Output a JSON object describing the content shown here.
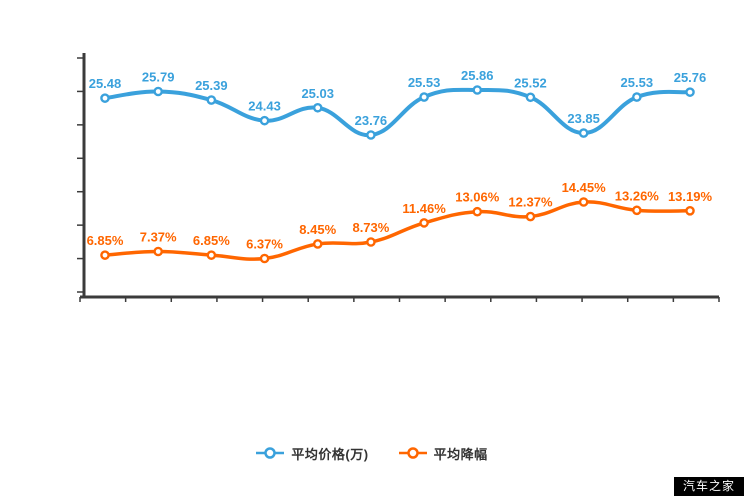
{
  "page": {
    "background": "#ffffff"
  },
  "legend": {
    "items": [
      {
        "label": "平均价格(万)",
        "series": "price",
        "color": "#3aa1dc"
      },
      {
        "label": "平均降幅",
        "series": "discount",
        "color": "#ff6600"
      }
    ]
  },
  "watermark": {
    "label": "汽车之家"
  },
  "chart_data": {
    "type": "line",
    "smooth": true,
    "grid": false,
    "legend_position": "bottom",
    "x_axis": {
      "labels_visible": false,
      "tick_count": 15
    },
    "y_axis": {
      "labels_visible": false,
      "tick_count": 8
    },
    "point_count": 12,
    "series": [
      {
        "name": "平均价格(万)",
        "color": "#3aa1dc",
        "values": [
          25.48,
          25.79,
          25.39,
          24.43,
          25.03,
          23.76,
          25.53,
          25.86,
          25.52,
          23.85,
          25.53,
          25.76
        ],
        "labels": [
          "25.48",
          "25.79",
          "25.39",
          "24.43",
          "25.03",
          "23.76",
          "25.53",
          "25.86",
          "25.52",
          "23.85",
          "25.53",
          "25.76"
        ]
      },
      {
        "name": "平均降幅",
        "color": "#ff6600",
        "values": [
          6.85,
          7.37,
          6.85,
          6.37,
          8.45,
          8.73,
          11.46,
          13.06,
          12.37,
          14.45,
          13.26,
          13.19
        ],
        "labels": [
          "6.85%",
          "7.37%",
          "6.85%",
          "6.37%",
          "8.45%",
          "8.73%",
          "11.46%",
          "13.06%",
          "12.37%",
          "14.45%",
          "13.26%",
          "13.19%"
        ]
      }
    ]
  }
}
